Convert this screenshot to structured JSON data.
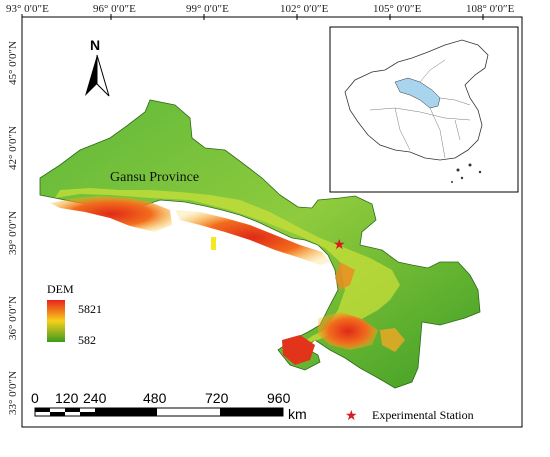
{
  "map": {
    "lon_ticks": [
      "93° 0′0″E",
      "96° 0′0″E",
      "99° 0′0″E",
      "102° 0′0″E",
      "105° 0′0″E",
      "108° 0′0″E"
    ],
    "lat_ticks": [
      "45° 0′0″N",
      "42° 0′0″N",
      "39° 0′0″N",
      "36° 0′0″N",
      "33° 0′0″N"
    ],
    "region_label": "Gansu Province",
    "north_label": "N",
    "colors": {
      "high": "#e53a1e",
      "mid": "#f7c81c",
      "low": "#3e9c21",
      "frame": "#000000"
    }
  },
  "legend": {
    "title": "DEM",
    "max": "5821",
    "min": "582",
    "station_label": "Experimental Station",
    "station_color": "#d41c1c"
  },
  "scale": {
    "ticks": [
      "0",
      "120",
      "240",
      "480",
      "720",
      "960"
    ],
    "unit": "km"
  }
}
